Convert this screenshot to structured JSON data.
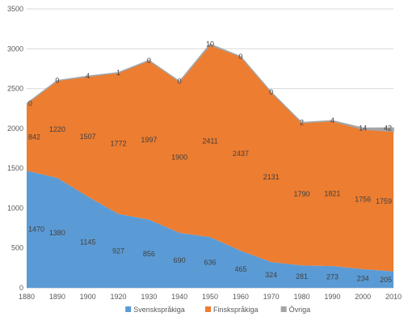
{
  "chart_data": {
    "type": "area",
    "stacked": true,
    "x": [
      1880,
      1890,
      1900,
      1920,
      1930,
      1940,
      1950,
      1960,
      1970,
      1980,
      1990,
      2000,
      2010
    ],
    "series": [
      {
        "name": "Svenskspråkiga",
        "color": "#5b9bd5",
        "values": [
          1470,
          1380,
          1145,
          927,
          856,
          690,
          636,
          465,
          324,
          281,
          273,
          234,
          205
        ]
      },
      {
        "name": "Finskspråkiga",
        "color": "#ed7d31",
        "values": [
          842,
          1220,
          1507,
          1772,
          1997,
          1900,
          2411,
          2437,
          2131,
          1790,
          1821,
          1756,
          1759
        ]
      },
      {
        "name": "Övriga",
        "color": "#a5a5a5",
        "values": [
          0,
          0,
          4,
          1,
          0,
          0,
          10,
          0,
          0,
          2,
          4,
          14,
          42
        ]
      }
    ],
    "ylim": [
      0,
      3500
    ],
    "yticks": [
      0,
      500,
      1000,
      1500,
      2000,
      2500,
      3000,
      3500
    ],
    "grid": true,
    "legend_position": "bottom",
    "title": "",
    "xlabel": "",
    "ylabel": ""
  }
}
